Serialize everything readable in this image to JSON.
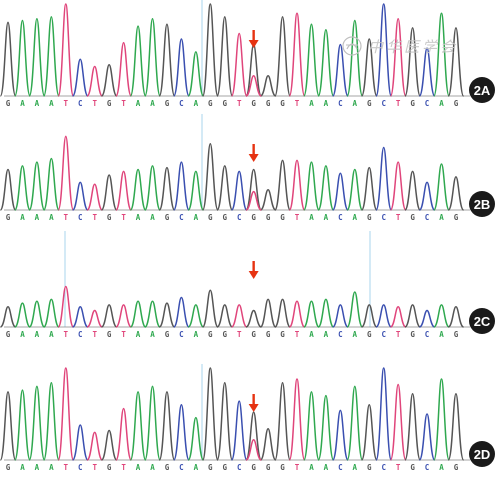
{
  "watermark": "中华医学会",
  "bases": {
    "A": "#2fa84f",
    "T": "#e0457b",
    "C": "#3a4fb0",
    "G": "#555555"
  },
  "arrow_color": "#e63312",
  "badge_color": "#1a1a1a",
  "panels": [
    {
      "label": "2A",
      "sequence": "GAAATCTGTAAGCAGGTGGGTAACAGCTGCAG",
      "heights": [
        0.8,
        0.82,
        0.84,
        0.86,
        1.0,
        0.4,
        0.32,
        0.34,
        0.58,
        0.76,
        0.84,
        0.78,
        0.62,
        0.48,
        1.0,
        0.86,
        0.68,
        0.56,
        0.22,
        0.86,
        0.9,
        0.78,
        0.72,
        0.56,
        0.82,
        0.62,
        1.0,
        0.84,
        0.74,
        0.52,
        0.9,
        0.74
      ],
      "mixed_peak": {
        "index": 17,
        "height": 0.22,
        "base": "T"
      }
    },
    {
      "label": "2B",
      "sequence": "GAAATCTGTAAGCAGGCGGGTAACAGCTGCAG",
      "heights": [
        0.44,
        0.48,
        0.52,
        0.56,
        0.8,
        0.3,
        0.28,
        0.38,
        0.42,
        0.44,
        0.48,
        0.46,
        0.52,
        0.42,
        0.72,
        0.48,
        0.42,
        0.44,
        0.22,
        0.54,
        0.54,
        0.52,
        0.48,
        0.4,
        0.44,
        0.46,
        0.68,
        0.52,
        0.42,
        0.3,
        0.5,
        0.36
      ],
      "mixed_peak": {
        "index": 17,
        "height": 0.2,
        "base": "T"
      }
    },
    {
      "label": "2C",
      "sequence": "GAAATCTGTAAGCAGGTGGGTAACAGCTGCAG",
      "heights": [
        0.22,
        0.26,
        0.28,
        0.3,
        0.44,
        0.22,
        0.18,
        0.24,
        0.24,
        0.28,
        0.28,
        0.26,
        0.32,
        0.24,
        0.4,
        0.24,
        0.24,
        0.18,
        0.3,
        0.3,
        0.28,
        0.28,
        0.3,
        0.24,
        0.38,
        0.24,
        0.24,
        0.22,
        0.24,
        0.18,
        0.24,
        0.22
      ],
      "mixed_peak": null
    },
    {
      "label": "2D",
      "sequence": "GAAATCTGTAAGCAGGCGGGTAACAGCTGCAG",
      "heights": [
        0.74,
        0.76,
        0.8,
        0.84,
        1.0,
        0.38,
        0.3,
        0.32,
        0.56,
        0.74,
        0.8,
        0.74,
        0.6,
        0.46,
        1.0,
        0.84,
        0.64,
        0.52,
        0.34,
        0.84,
        0.88,
        0.74,
        0.7,
        0.54,
        0.8,
        0.6,
        1.0,
        0.82,
        0.72,
        0.5,
        0.88,
        0.72
      ],
      "mixed_peak": {
        "index": 17,
        "height": 0.22,
        "base": "T"
      }
    }
  ]
}
